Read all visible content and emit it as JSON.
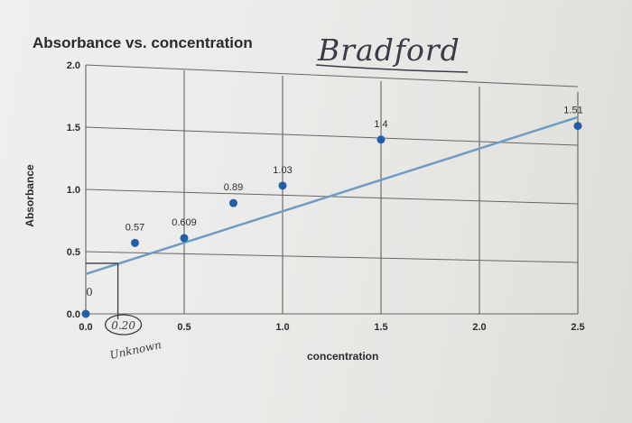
{
  "chart_data": {
    "type": "scatter",
    "title": "Absorbance vs. concentration",
    "xlabel": "concentration",
    "ylabel": "Absorbance",
    "xlim": [
      0,
      2.5
    ],
    "ylim": [
      0,
      2.0
    ],
    "x_ticks": [
      "0.0",
      "0.5",
      "1.0",
      "1.5",
      "2.0",
      "2.5"
    ],
    "y_ticks": [
      "0.0",
      "0.5",
      "1.0",
      "1.5",
      "2.0"
    ],
    "grid": true,
    "series": [
      {
        "points": [
          {
            "x": 0.0,
            "y": 0.0,
            "label": "0"
          },
          {
            "x": 0.25,
            "y": 0.57,
            "label": "0.57"
          },
          {
            "x": 0.5,
            "y": 0.609,
            "label": "0.609"
          },
          {
            "x": 0.75,
            "y": 0.89,
            "label": "0.89"
          },
          {
            "x": 1.0,
            "y": 1.03,
            "label": "1.03"
          },
          {
            "x": 1.5,
            "y": 1.4,
            "label": "1.4"
          },
          {
            "x": 2.5,
            "y": 1.51,
            "label": "1.51"
          }
        ],
        "color": "#1f5fa8"
      }
    ],
    "trendline": {
      "x": [
        0,
        2.5
      ],
      "y": [
        0.32,
        1.58
      ],
      "color": "#6f9cc6"
    },
    "annotations": {
      "handwritten_title": "Bradford",
      "unknown_x_label": "0.20",
      "unknown_note": "Unknown",
      "unknown_x": 0.2
    }
  }
}
